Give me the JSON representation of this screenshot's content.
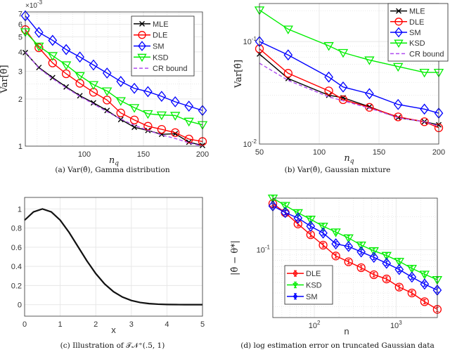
{
  "chart_data": [
    {
      "id": "a",
      "type": "line",
      "caption": "(a)  Var(θ̂), Gamma distribution",
      "xlabel": "n_q",
      "ylabel": "Var[θ̂]",
      "y_multiplier": "×10^-3",
      "xscale": "linear",
      "yscale": "log",
      "xlim": [
        50,
        200
      ],
      "ylim": [
        1,
        7.2
      ],
      "xticks": [
        {
          "v": 100,
          "label": "100"
        },
        {
          "v": 150,
          "label": "150"
        },
        {
          "v": 200,
          "label": "200"
        }
      ],
      "yticks": [
        {
          "v": 1,
          "label": "1"
        },
        {
          "v": 2,
          "label": "2"
        },
        {
          "v": 3,
          "label": "3"
        },
        {
          "v": 4,
          "label": "4"
        },
        {
          "v": 5,
          "label": "5"
        },
        {
          "v": 6,
          "label": "6"
        },
        {
          "v": 7,
          "label": "7"
        }
      ],
      "minor_x": [
        60,
        70,
        80,
        90,
        110,
        120,
        130,
        140,
        160,
        170,
        180,
        190
      ],
      "minor_y": [
        1.5,
        2.5
      ],
      "grid": true,
      "legend": "top-right",
      "x": [
        50,
        61.5,
        73.1,
        84.6,
        96.2,
        107.7,
        119.2,
        130.8,
        142.3,
        153.8,
        165.4,
        176.9,
        188.5,
        200
      ],
      "series": [
        {
          "name": "MLE",
          "marker": "x",
          "color": "#000000",
          "values": [
            3.96,
            3.18,
            2.74,
            2.39,
            2.1,
            1.89,
            1.69,
            1.48,
            1.32,
            1.26,
            1.19,
            1.2,
            1.06,
            1.01
          ]
        },
        {
          "name": "DLE",
          "marker": "circle",
          "color": "#ff0000",
          "values": [
            5.55,
            4.25,
            3.4,
            2.9,
            2.52,
            2.21,
            1.97,
            1.63,
            1.47,
            1.34,
            1.28,
            1.22,
            1.11,
            1.07
          ]
        },
        {
          "name": "SM",
          "marker": "diamond",
          "color": "#0000ff",
          "values": [
            6.8,
            5.33,
            4.74,
            4.14,
            3.71,
            3.3,
            2.93,
            2.59,
            2.34,
            2.23,
            2.08,
            1.92,
            1.8,
            1.69
          ]
        },
        {
          "name": "KSD",
          "marker": "triangle-down",
          "color": "#00ee00",
          "values": [
            5.37,
            4.35,
            3.78,
            3.3,
            2.82,
            2.47,
            2.25,
            1.95,
            1.76,
            1.61,
            1.58,
            1.57,
            1.44,
            1.37
          ]
        },
        {
          "name": "CR bound",
          "marker": "none",
          "dash": true,
          "color": "#b04cf0",
          "values": [
            4.0,
            3.15,
            2.7,
            2.36,
            2.08,
            1.86,
            1.66,
            1.49,
            1.36,
            1.26,
            1.18,
            1.12,
            1.05,
            1.0
          ]
        }
      ]
    },
    {
      "id": "b",
      "type": "line",
      "caption": "(b)  Var(θ̂), Gaussian mixture",
      "xlabel": "n_q",
      "ylabel": "Var[θ̂]",
      "xscale": "linear",
      "yscale": "log",
      "xlim": [
        50,
        200
      ],
      "ylim": [
        0.01,
        0.235
      ],
      "xticks": [
        {
          "v": 50,
          "label": "50"
        },
        {
          "v": 100,
          "label": "100"
        },
        {
          "v": 150,
          "label": "150"
        },
        {
          "v": 200,
          "label": "200"
        }
      ],
      "yticks": [
        {
          "v": 0.01,
          "label": "10^-2"
        },
        {
          "v": 0.1,
          "label": "10^-1"
        }
      ],
      "minor_x": [],
      "minor_y": [
        0.02,
        0.03,
        0.04,
        0.05,
        0.06,
        0.07,
        0.08,
        0.09,
        0.2
      ],
      "grid": true,
      "legend": "top-right",
      "x": [
        50,
        74,
        108,
        120,
        142,
        166,
        188,
        200
      ],
      "series": [
        {
          "name": "MLE",
          "marker": "x",
          "color": "#000000",
          "values": [
            0.0755,
            0.0436,
            0.0299,
            0.0283,
            0.0231,
            0.0181,
            0.0165,
            0.0154
          ]
        },
        {
          "name": "DLE",
          "marker": "circle",
          "color": "#ff0000",
          "values": [
            0.085,
            0.049,
            0.033,
            0.0271,
            0.0228,
            0.0184,
            0.0165,
            0.0144
          ]
        },
        {
          "name": "SM",
          "marker": "diamond",
          "color": "#0000ff",
          "values": [
            0.1,
            0.074,
            0.045,
            0.036,
            0.031,
            0.0243,
            0.0219,
            0.02
          ]
        },
        {
          "name": "KSD",
          "marker": "triangle-down",
          "color": "#00ee00",
          "values": [
            0.203,
            0.132,
            0.091,
            0.078,
            0.066,
            0.057,
            0.05,
            0.05
          ]
        },
        {
          "name": "CR bound",
          "marker": "none",
          "dash": true,
          "color": "#b04cf0",
          "values": [
            0.0615,
            0.0418,
            0.0289,
            0.0264,
            0.0224,
            0.0181,
            0.0165,
            0.015
          ]
        }
      ]
    },
    {
      "id": "c",
      "type": "line",
      "caption": "(c)  Illustration of 𝒯𝒩⁺(.5, 1)",
      "xlabel": "x",
      "ylabel": "",
      "xscale": "linear",
      "yscale": "linear",
      "xlim": [
        0,
        5
      ],
      "ylim": [
        -0.12,
        1.12
      ],
      "xticks": [
        {
          "v": 0,
          "label": "0"
        },
        {
          "v": 1,
          "label": "1"
        },
        {
          "v": 2,
          "label": "2"
        },
        {
          "v": 3,
          "label": "3"
        },
        {
          "v": 4,
          "label": "4"
        },
        {
          "v": 5,
          "label": "5"
        }
      ],
      "yticks": [
        {
          "v": 0,
          "label": "0"
        },
        {
          "v": 0.2,
          "label": "0.2"
        },
        {
          "v": 0.4,
          "label": "0.4"
        },
        {
          "v": 0.6,
          "label": "0.6"
        },
        {
          "v": 0.8,
          "label": "0.8"
        },
        {
          "v": 1,
          "label": "1"
        }
      ],
      "minor_x": [],
      "minor_y": [],
      "grid": true,
      "legend": "none",
      "x": [
        0,
        0.25,
        0.5,
        0.75,
        1,
        1.25,
        1.5,
        1.75,
        2,
        2.25,
        2.5,
        2.75,
        3,
        3.25,
        3.5,
        3.75,
        4,
        4.25,
        4.5,
        4.75,
        5
      ],
      "series": [
        {
          "name": "density",
          "marker": "none",
          "color": "#111111",
          "width": 2.2,
          "values": [
            0.8825,
            0.9692,
            1,
            0.9692,
            0.8825,
            0.7548,
            0.6065,
            0.4578,
            0.3247,
            0.2163,
            0.1353,
            0.0796,
            0.0439,
            0.0228,
            0.0111,
            0.0051,
            0.0022,
            0.0009,
            0.0003,
            0.0001,
            4e-05
          ]
        }
      ]
    },
    {
      "id": "d",
      "type": "line",
      "caption": "(d)  log estimation error on truncated Gaussian data",
      "xlabel": "n",
      "ylabel": "|θ̂ − θ*|",
      "xscale": "log",
      "yscale": "log",
      "xlim": [
        31,
        3200
      ],
      "ylim": [
        0.0238,
        0.297
      ],
      "xticks": [
        {
          "v": 100,
          "label": "10^2"
        },
        {
          "v": 1000,
          "label": "10^3"
        }
      ],
      "yticks": [
        {
          "v": 0.1,
          "label": "10^-1"
        }
      ],
      "minor_x": [
        40,
        50,
        60,
        70,
        80,
        90,
        200,
        300,
        400,
        500,
        600,
        700,
        800,
        900,
        2000,
        3000
      ],
      "minor_y": [
        0.03,
        0.04,
        0.05,
        0.06,
        0.07,
        0.08,
        0.09,
        0.2
      ],
      "grid": true,
      "legend": "bottom-left",
      "errorbars": true,
      "x": [
        31,
        44,
        63,
        90,
        128,
        183,
        262,
        374,
        535,
        765,
        1093,
        1562,
        2233,
        3192
      ],
      "series": [
        {
          "name": "DLE",
          "marker": "circle",
          "color": "#ff0000",
          "values": [
            0.265,
            0.218,
            0.172,
            0.137,
            0.11,
            0.0875,
            0.0773,
            0.0683,
            0.0589,
            0.0538,
            0.0453,
            0.04,
            0.0333,
            0.0283
          ]
        },
        {
          "name": "KSD",
          "marker": "triangle-down",
          "color": "#00ee00",
          "values": [
            0.297,
            0.254,
            0.218,
            0.19,
            0.164,
            0.145,
            0.128,
            0.11,
            0.0976,
            0.0883,
            0.078,
            0.0673,
            0.0594,
            0.053
          ]
        },
        {
          "name": "SM",
          "marker": "diamond",
          "color": "#0000ff",
          "values": [
            0.252,
            0.219,
            0.195,
            0.164,
            0.142,
            0.113,
            0.107,
            0.0953,
            0.085,
            0.075,
            0.0657,
            0.056,
            0.0483,
            0.0425
          ]
        }
      ]
    }
  ]
}
